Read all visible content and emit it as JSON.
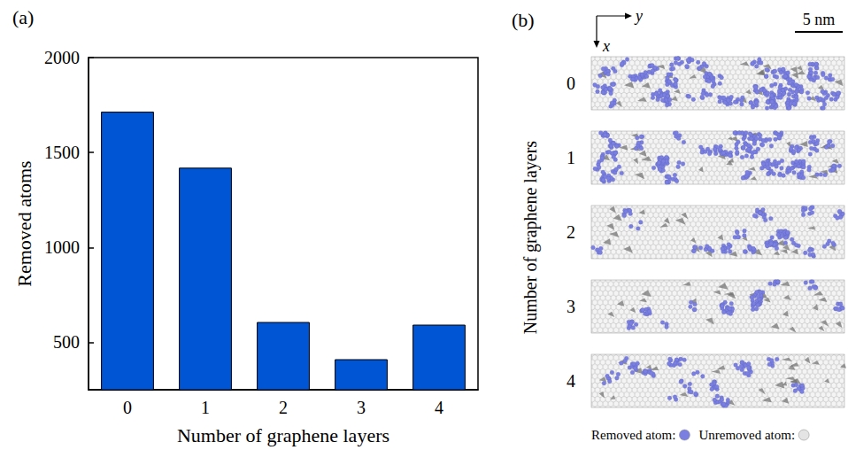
{
  "chart_data": {
    "type": "bar",
    "panel_label": "(a)",
    "x_label": "Number of graphene layers",
    "y_label": "Removed atoms",
    "categories": [
      "0",
      "1",
      "2",
      "3",
      "4"
    ],
    "values": [
      1715,
      1420,
      607,
      411,
      593
    ],
    "color": "#0055d5",
    "ylim": [
      250,
      2000
    ],
    "yticks": [
      500,
      1000,
      1500,
      2000
    ],
    "grid": false
  },
  "panel_b": {
    "panel_label": "(b)",
    "axis_labels": {
      "horizontal": "y",
      "vertical": "x"
    },
    "scale_bar": "5 nm",
    "row_title": "Number of graphene layers",
    "rows": [
      "0",
      "1",
      "2",
      "3",
      "4"
    ],
    "legend": [
      {
        "label": "Removed atom:",
        "color": "#7b80e0"
      },
      {
        "label": "Unremoved atom:",
        "color": "#e4e4e4"
      }
    ]
  }
}
